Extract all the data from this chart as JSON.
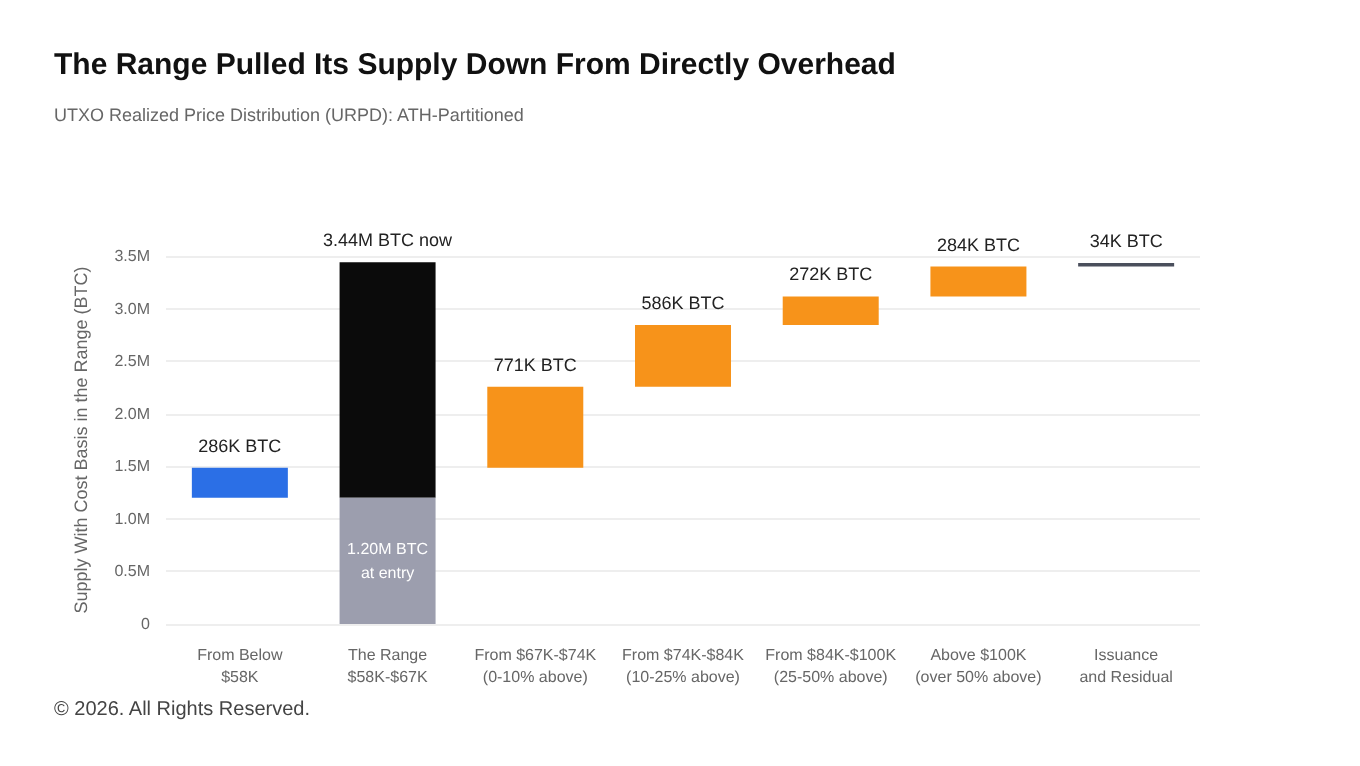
{
  "chart_data": {
    "type": "bar",
    "title": "The Range Pulled Its Supply Down From Directly Overhead",
    "subtitle": "UTXO Realized Price Distribution (URPD): ATH-Partitioned",
    "ylabel": "Supply With Cost Basis in the Range (BTC)",
    "categories": [
      "From Below\n$58K",
      "The Range\n$58K-$67K",
      "From $67K-$74K\n(0-10% above)",
      "From $74K-$84K\n(10-25% above)",
      "From $84K-$100K\n(25-50% above)",
      "Above $100K\n(over 50% above)",
      "Issuance\nand Residual"
    ],
    "series": [
      {
        "colors": [
          "#2b6fe6",
          "#0b0b0b",
          "#f7931a",
          "#f7931a",
          "#f7931a",
          "#f7931a",
          "#4a4f5c"
        ],
        "values": [
          286000,
          2240000,
          771000,
          586000,
          272000,
          284000,
          34000
        ],
        "base": [
          1200000,
          1200000,
          1486000,
          2257000,
          2843000,
          3115000,
          3399000
        ],
        "value_labels": [
          "286K BTC",
          null,
          "771K BTC",
          "586K BTC",
          "272K BTC",
          "284K BTC",
          "34K BTC"
        ]
      },
      {
        "color": "#9c9eae",
        "values": [
          null,
          1200000,
          null,
          null,
          null,
          null,
          null
        ],
        "base": [
          null,
          0,
          null,
          null,
          null,
          null,
          null
        ],
        "value_labels": [
          null,
          "1.20M BTC\nat entry",
          null,
          null,
          null,
          null,
          null
        ]
      }
    ],
    "totals": [
      null,
      "3.44M BTC now",
      null,
      null,
      null,
      null,
      null
    ],
    "ylim": [
      0,
      3500000
    ],
    "yticks": [
      0,
      {
        "value": 500000,
        "label": "0.5M"
      },
      {
        "value": 1000000,
        "label": "1.0M"
      },
      {
        "value": 1500000,
        "label": "1.5M"
      },
      {
        "value": 2000000,
        "label": "2.0M"
      },
      {
        "value": 2500000,
        "label": "2.5M"
      },
      {
        "value": 3000000,
        "label": "3.0M"
      },
      {
        "value": 3500000,
        "label": "3.5M"
      }
    ],
    "grid": "y",
    "annotations": [
      "© 2026. All Rights Reserved."
    ]
  }
}
